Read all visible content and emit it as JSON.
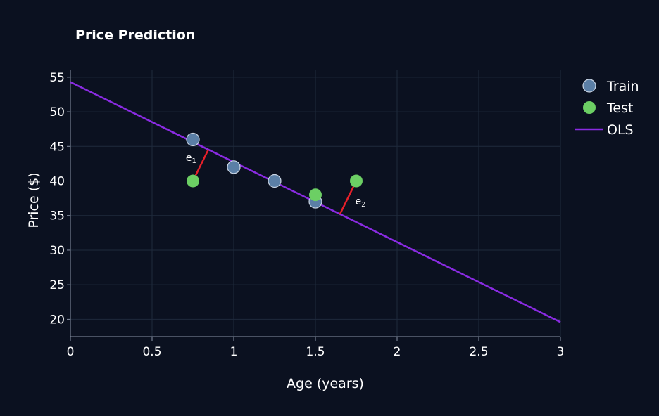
{
  "chart_data": {
    "type": "scatter",
    "title": "Price Prediction",
    "xlabel": "Age (years)",
    "ylabel": "Price ($)",
    "xlim": [
      0,
      3
    ],
    "ylim": [
      17.5,
      56
    ],
    "x_ticks": [
      {
        "value": 0,
        "label": "0"
      },
      {
        "value": 0.5,
        "label": "0.5"
      },
      {
        "value": 1,
        "label": "1"
      },
      {
        "value": 1.5,
        "label": "1.5"
      },
      {
        "value": 2,
        "label": "2"
      },
      {
        "value": 2.5,
        "label": "2.5"
      },
      {
        "value": 3,
        "label": "3"
      }
    ],
    "y_ticks": [
      {
        "value": 20,
        "label": "20"
      },
      {
        "value": 25,
        "label": "25"
      },
      {
        "value": 30,
        "label": "30"
      },
      {
        "value": 35,
        "label": "35"
      },
      {
        "value": 40,
        "label": "40"
      },
      {
        "value": 45,
        "label": "45"
      },
      {
        "value": 50,
        "label": "50"
      },
      {
        "value": 55,
        "label": "55"
      }
    ],
    "grid": true,
    "legend_position": "top-right",
    "series": [
      {
        "name": "Train",
        "kind": "markers",
        "color": "#5b7fa6",
        "points": [
          {
            "x": 0.75,
            "y": 46
          },
          {
            "x": 1.0,
            "y": 42
          },
          {
            "x": 1.25,
            "y": 40
          },
          {
            "x": 1.5,
            "y": 37
          }
        ]
      },
      {
        "name": "Test",
        "kind": "markers",
        "color": "#6ccf64",
        "points": [
          {
            "x": 0.75,
            "y": 40
          },
          {
            "x": 1.5,
            "y": 38
          },
          {
            "x": 1.75,
            "y": 40
          }
        ]
      },
      {
        "name": "OLS",
        "kind": "line",
        "color": "#8a2be2",
        "points": [
          {
            "x": 0,
            "y": 54.3
          },
          {
            "x": 3,
            "y": 19.6
          }
        ]
      }
    ],
    "residuals": [
      {
        "label": "e",
        "sub": "1",
        "color": "#e8202a",
        "from": {
          "x": 0.75,
          "y": 40
        }
      },
      {
        "label": "e",
        "sub": "2",
        "color": "#e8202a",
        "from": {
          "x": 1.75,
          "y": 40
        }
      }
    ]
  }
}
